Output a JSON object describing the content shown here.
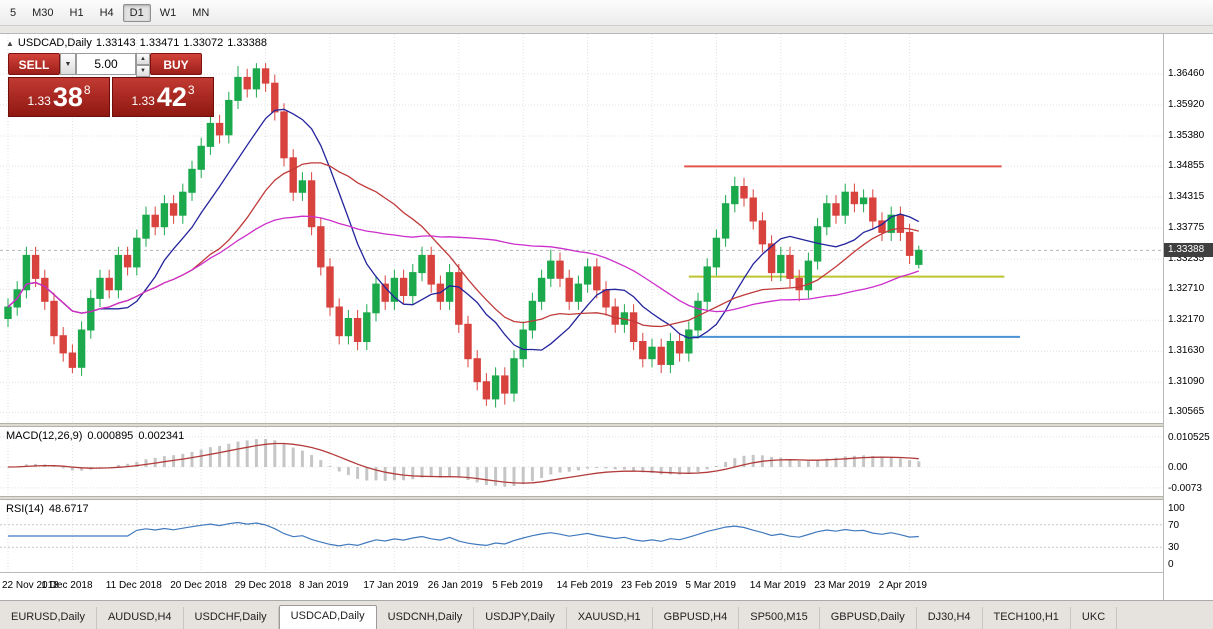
{
  "toolbar": {
    "timeframes": [
      "5",
      "M30",
      "H1",
      "H4",
      "D1",
      "W1",
      "MN"
    ],
    "active": "D1"
  },
  "chart": {
    "symbol_label": "USDCAD,Daily",
    "open": "1.33143",
    "high": "1.33471",
    "low": "1.33072",
    "close": "1.33388"
  },
  "icons": {
    "collapse_arrow": "▲",
    "dropdown_arrow": "▼",
    "spin_up": "▲",
    "spin_down": "▼"
  },
  "one_click": {
    "sell_label": "SELL",
    "buy_label": "BUY",
    "volume": "5.00",
    "bid_prefix": "1.33",
    "bid_big": "38",
    "bid_sup": "8",
    "ask_prefix": "1.33",
    "ask_big": "42",
    "ask_sup": "3"
  },
  "price_scale": {
    "ticks": [
      "1.36460",
      "1.35920",
      "1.35380",
      "1.34855",
      "1.34315",
      "1.33775",
      "1.33235",
      "1.32710",
      "1.32170",
      "1.31630",
      "1.31090",
      "1.30565"
    ],
    "current": "1.33388"
  },
  "macd_panel": {
    "name": "MACD(12,26,9)",
    "value_main": "0.000895",
    "value_signal": "0.002341",
    "scale": [
      "0.010525",
      "0.00",
      "-0.0073"
    ]
  },
  "rsi_panel": {
    "name": "RSI(14)",
    "value": "48.6717",
    "scale": [
      "100",
      "70",
      "30",
      "0"
    ]
  },
  "tabs": {
    "active_index": 3,
    "items": [
      "EURUSD,Daily",
      "AUDUSD,H4",
      "USDCHF,Daily",
      "USDCAD,Daily",
      "USDCNH,Daily",
      "USDJPY,Daily",
      "XAUUSD,H1",
      "GBPUSD,H4",
      "SP500,M15",
      "GBPUSD,Daily",
      "DJ30,H4",
      "TECH100,H1",
      "UKC"
    ]
  },
  "colors": {
    "candle_up": "#1ba94c",
    "candle_down": "#d8433e",
    "buy_sell_red": "#c0392b",
    "badge_bg": "#3f3f3f",
    "grid": "#e0e0e0",
    "active_tab_bg": "#ffffff"
  },
  "chart_data": {
    "type": "candlestick",
    "title": "USDCAD,Daily",
    "current_price": 1.33388,
    "x_labels": [
      "22 Nov 2018",
      "1 Dec 2018",
      "11 Dec 2018",
      "20 Dec 2018",
      "29 Dec 2018",
      "8 Jan 2019",
      "17 Jan 2019",
      "26 Jan 2019",
      "5 Feb 2019",
      "14 Feb 2019",
      "23 Feb 2019",
      "5 Mar 2019",
      "14 Mar 2019",
      "23 Mar 2019",
      "2 Apr 2019"
    ],
    "x_label_indices": [
      0,
      7,
      14,
      21,
      28,
      35,
      42,
      49,
      56,
      63,
      70,
      77,
      84,
      91,
      98
    ],
    "candle_colors": {
      "up": "#1ba94c",
      "down": "#d8433e"
    },
    "candles": [
      [
        1.322,
        1.3255,
        1.3205,
        1.324
      ],
      [
        1.324,
        1.3285,
        1.3225,
        1.327
      ],
      [
        1.327,
        1.3345,
        1.3255,
        1.333
      ],
      [
        1.333,
        1.3345,
        1.3275,
        1.329
      ],
      [
        1.329,
        1.3305,
        1.3235,
        1.325
      ],
      [
        1.325,
        1.3265,
        1.3175,
        1.319
      ],
      [
        1.319,
        1.3205,
        1.3145,
        1.316
      ],
      [
        1.316,
        1.3175,
        1.3125,
        1.3135
      ],
      [
        1.3135,
        1.3215,
        1.312,
        1.32
      ],
      [
        1.32,
        1.327,
        1.3185,
        1.3255
      ],
      [
        1.3255,
        1.3305,
        1.324,
        1.329
      ],
      [
        1.329,
        1.3305,
        1.3255,
        1.327
      ],
      [
        1.327,
        1.3345,
        1.3255,
        1.333
      ],
      [
        1.333,
        1.3345,
        1.3295,
        1.331
      ],
      [
        1.331,
        1.3375,
        1.3295,
        1.336
      ],
      [
        1.336,
        1.3415,
        1.3345,
        1.34
      ],
      [
        1.34,
        1.3415,
        1.3365,
        1.338
      ],
      [
        1.338,
        1.3435,
        1.3365,
        1.342
      ],
      [
        1.342,
        1.3435,
        1.3385,
        1.34
      ],
      [
        1.34,
        1.3455,
        1.3385,
        1.344
      ],
      [
        1.344,
        1.3495,
        1.3425,
        1.348
      ],
      [
        1.348,
        1.3535,
        1.3465,
        1.352
      ],
      [
        1.352,
        1.3575,
        1.3505,
        1.356
      ],
      [
        1.356,
        1.3575,
        1.3525,
        1.354
      ],
      [
        1.354,
        1.3615,
        1.3525,
        1.36
      ],
      [
        1.36,
        1.366,
        1.3585,
        1.364
      ],
      [
        1.364,
        1.3655,
        1.3605,
        1.362
      ],
      [
        1.362,
        1.3665,
        1.3605,
        1.3655
      ],
      [
        1.3655,
        1.3665,
        1.3615,
        1.363
      ],
      [
        1.363,
        1.3645,
        1.3565,
        1.358
      ],
      [
        1.358,
        1.3595,
        1.3485,
        1.35
      ],
      [
        1.35,
        1.3515,
        1.3425,
        1.344
      ],
      [
        1.344,
        1.3475,
        1.3425,
        1.346
      ],
      [
        1.346,
        1.3475,
        1.3365,
        1.338
      ],
      [
        1.338,
        1.3395,
        1.3295,
        1.331
      ],
      [
        1.331,
        1.3325,
        1.3225,
        1.324
      ],
      [
        1.324,
        1.3255,
        1.3175,
        1.319
      ],
      [
        1.319,
        1.3235,
        1.3175,
        1.322
      ],
      [
        1.322,
        1.3235,
        1.3165,
        1.318
      ],
      [
        1.318,
        1.3245,
        1.3165,
        1.323
      ],
      [
        1.323,
        1.3295,
        1.3215,
        1.328
      ],
      [
        1.328,
        1.3295,
        1.3235,
        1.325
      ],
      [
        1.325,
        1.3305,
        1.3235,
        1.329
      ],
      [
        1.329,
        1.3305,
        1.3245,
        1.326
      ],
      [
        1.326,
        1.3315,
        1.3245,
        1.33
      ],
      [
        1.33,
        1.3345,
        1.3285,
        1.333
      ],
      [
        1.333,
        1.3345,
        1.3265,
        1.328
      ],
      [
        1.328,
        1.3295,
        1.3235,
        1.325
      ],
      [
        1.325,
        1.3315,
        1.3235,
        1.33
      ],
      [
        1.33,
        1.3315,
        1.3195,
        1.321
      ],
      [
        1.321,
        1.3225,
        1.3135,
        1.315
      ],
      [
        1.315,
        1.3165,
        1.3095,
        1.311
      ],
      [
        1.311,
        1.3125,
        1.3068,
        1.308
      ],
      [
        1.308,
        1.3135,
        1.3065,
        1.312
      ],
      [
        1.312,
        1.3135,
        1.307,
        1.309
      ],
      [
        1.309,
        1.3165,
        1.3075,
        1.315
      ],
      [
        1.315,
        1.3215,
        1.3135,
        1.32
      ],
      [
        1.32,
        1.3265,
        1.3185,
        1.325
      ],
      [
        1.325,
        1.3305,
        1.3235,
        1.329
      ],
      [
        1.329,
        1.334,
        1.3275,
        1.332
      ],
      [
        1.332,
        1.3335,
        1.3275,
        1.329
      ],
      [
        1.329,
        1.3305,
        1.3235,
        1.325
      ],
      [
        1.325,
        1.3295,
        1.3235,
        1.328
      ],
      [
        1.328,
        1.3325,
        1.3265,
        1.331
      ],
      [
        1.331,
        1.3325,
        1.3255,
        1.327
      ],
      [
        1.327,
        1.3285,
        1.3225,
        1.324
      ],
      [
        1.324,
        1.3255,
        1.3195,
        1.321
      ],
      [
        1.321,
        1.3245,
        1.3195,
        1.323
      ],
      [
        1.323,
        1.3245,
        1.3165,
        1.318
      ],
      [
        1.318,
        1.3195,
        1.3135,
        1.315
      ],
      [
        1.315,
        1.3185,
        1.3135,
        1.317
      ],
      [
        1.317,
        1.3185,
        1.3125,
        1.314
      ],
      [
        1.314,
        1.3195,
        1.3125,
        1.318
      ],
      [
        1.318,
        1.3195,
        1.3145,
        1.316
      ],
      [
        1.316,
        1.3215,
        1.3145,
        1.32
      ],
      [
        1.32,
        1.3265,
        1.3185,
        1.325
      ],
      [
        1.325,
        1.3325,
        1.3235,
        1.331
      ],
      [
        1.331,
        1.3375,
        1.3295,
        1.336
      ],
      [
        1.336,
        1.3435,
        1.3345,
        1.342
      ],
      [
        1.342,
        1.3467,
        1.3405,
        1.345
      ],
      [
        1.345,
        1.3465,
        1.3415,
        1.343
      ],
      [
        1.343,
        1.3445,
        1.3375,
        1.339
      ],
      [
        1.339,
        1.3405,
        1.3335,
        1.335
      ],
      [
        1.335,
        1.3365,
        1.3285,
        1.33
      ],
      [
        1.33,
        1.3345,
        1.3285,
        1.333
      ],
      [
        1.333,
        1.3345,
        1.3275,
        1.329
      ],
      [
        1.329,
        1.3305,
        1.325,
        1.327
      ],
      [
        1.327,
        1.3335,
        1.3255,
        1.332
      ],
      [
        1.332,
        1.3395,
        1.3305,
        1.338
      ],
      [
        1.338,
        1.3435,
        1.3365,
        1.342
      ],
      [
        1.342,
        1.3435,
        1.3385,
        1.34
      ],
      [
        1.34,
        1.3455,
        1.3385,
        1.344
      ],
      [
        1.344,
        1.3455,
        1.3405,
        1.342
      ],
      [
        1.342,
        1.3445,
        1.3405,
        1.343
      ],
      [
        1.343,
        1.3445,
        1.3375,
        1.339
      ],
      [
        1.339,
        1.3405,
        1.3355,
        1.337
      ],
      [
        1.337,
        1.3415,
        1.3355,
        1.34
      ],
      [
        1.34,
        1.3415,
        1.3355,
        1.337
      ],
      [
        1.337,
        1.3385,
        1.3315,
        1.333
      ],
      [
        1.33143,
        1.33471,
        1.33072,
        1.33388
      ]
    ],
    "moving_averages": [
      {
        "period": 10,
        "color": "#24249c"
      },
      {
        "period": 21,
        "color": "#c03a3a"
      },
      {
        "period": 45,
        "color": "#cc2fcc"
      }
    ],
    "hlines": [
      {
        "price": 1.3485,
        "from_index": 73.5,
        "to_index": 108,
        "color": "#e3574f"
      },
      {
        "price": 1.3293,
        "from_index": 74,
        "to_index": 108.3,
        "color": "#bcc430"
      },
      {
        "price": 1.3188,
        "from_index": 73.5,
        "to_index": 110,
        "color": "#4a93d6"
      }
    ],
    "macd": {
      "fast": 12,
      "slow": 26,
      "signal_period": 9,
      "hist_color": "#c6c6c6",
      "signal_color": "#b23b3b"
    },
    "rsi": {
      "period": 14,
      "color": "#4079bd",
      "levels": [
        70,
        30
      ]
    },
    "grid_color": "#e0e0e0"
  }
}
